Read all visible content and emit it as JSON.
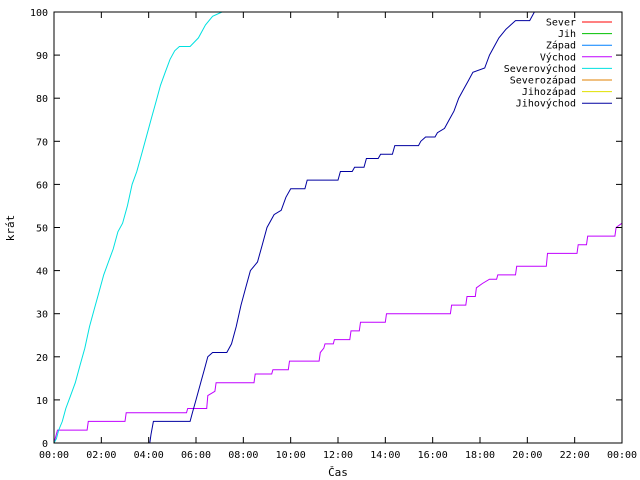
{
  "chart_data": {
    "type": "line",
    "xlabel": "Čas",
    "ylabel": "krát",
    "xlim": [
      0,
      24
    ],
    "ylim": [
      0,
      100
    ],
    "x_ticks": [
      {
        "value": 0,
        "label": "00:00"
      },
      {
        "value": 2,
        "label": "02:00"
      },
      {
        "value": 4,
        "label": "04:00"
      },
      {
        "value": 6,
        "label": "06:00"
      },
      {
        "value": 8,
        "label": "08:00"
      },
      {
        "value": 10,
        "label": "10:00"
      },
      {
        "value": 12,
        "label": "12:00"
      },
      {
        "value": 14,
        "label": "14:00"
      },
      {
        "value": 16,
        "label": "16:00"
      },
      {
        "value": 18,
        "label": "18:00"
      },
      {
        "value": 20,
        "label": "20:00"
      },
      {
        "value": 22,
        "label": "22:00"
      },
      {
        "value": 24,
        "label": "00:00"
      }
    ],
    "y_ticks": [
      0,
      10,
      20,
      30,
      40,
      50,
      60,
      70,
      80,
      90,
      100
    ],
    "grid": false,
    "legend_position": "top-right",
    "series": [
      {
        "name": "Sever",
        "color": "#ff0000",
        "points": []
      },
      {
        "name": "Jih",
        "color": "#00c000",
        "points": []
      },
      {
        "name": "Západ",
        "color": "#0080ff",
        "points": []
      },
      {
        "name": "Východ",
        "color": "#c000ff",
        "points": [
          [
            0.0,
            0
          ],
          [
            0.15,
            3
          ],
          [
            1.4,
            3
          ],
          [
            1.45,
            5
          ],
          [
            3.0,
            5
          ],
          [
            3.05,
            7
          ],
          [
            5.6,
            7
          ],
          [
            5.65,
            8
          ],
          [
            6.45,
            8
          ],
          [
            6.5,
            11
          ],
          [
            6.8,
            12
          ],
          [
            6.85,
            14
          ],
          [
            8.45,
            14
          ],
          [
            8.5,
            16
          ],
          [
            9.2,
            16
          ],
          [
            9.25,
            17
          ],
          [
            9.9,
            17
          ],
          [
            9.95,
            19
          ],
          [
            11.2,
            19
          ],
          [
            11.25,
            21
          ],
          [
            11.4,
            22
          ],
          [
            11.45,
            23
          ],
          [
            11.8,
            23
          ],
          [
            11.85,
            24
          ],
          [
            12.5,
            24
          ],
          [
            12.55,
            26
          ],
          [
            12.9,
            26
          ],
          [
            12.95,
            28
          ],
          [
            14.0,
            28
          ],
          [
            14.05,
            30
          ],
          [
            16.75,
            30
          ],
          [
            16.8,
            32
          ],
          [
            17.4,
            32
          ],
          [
            17.45,
            34
          ],
          [
            17.8,
            34
          ],
          [
            17.85,
            36
          ],
          [
            18.1,
            37
          ],
          [
            18.4,
            38
          ],
          [
            18.7,
            38
          ],
          [
            18.75,
            39
          ],
          [
            19.5,
            39
          ],
          [
            19.55,
            41
          ],
          [
            20.8,
            41
          ],
          [
            20.85,
            44
          ],
          [
            22.1,
            44
          ],
          [
            22.15,
            46
          ],
          [
            22.5,
            46
          ],
          [
            22.55,
            48
          ],
          [
            23.7,
            48
          ],
          [
            23.75,
            50
          ],
          [
            24.0,
            51
          ]
        ]
      },
      {
        "name": "Severovýchod",
        "color": "#00e0e0",
        "points": [
          [
            0.0,
            0
          ],
          [
            0.1,
            1
          ],
          [
            0.2,
            3
          ],
          [
            0.35,
            5
          ],
          [
            0.5,
            8
          ],
          [
            0.7,
            11
          ],
          [
            0.9,
            14
          ],
          [
            1.1,
            18
          ],
          [
            1.3,
            22
          ],
          [
            1.5,
            27
          ],
          [
            1.7,
            31
          ],
          [
            1.9,
            35
          ],
          [
            2.1,
            39
          ],
          [
            2.3,
            42
          ],
          [
            2.5,
            45
          ],
          [
            2.7,
            49
          ],
          [
            2.9,
            51
          ],
          [
            3.1,
            55
          ],
          [
            3.3,
            60
          ],
          [
            3.5,
            63
          ],
          [
            3.7,
            67
          ],
          [
            3.9,
            71
          ],
          [
            4.1,
            75
          ],
          [
            4.3,
            79
          ],
          [
            4.5,
            83
          ],
          [
            4.7,
            86
          ],
          [
            4.9,
            89
          ],
          [
            5.1,
            91
          ],
          [
            5.3,
            92
          ],
          [
            5.75,
            92
          ],
          [
            6.1,
            94
          ],
          [
            6.4,
            97
          ],
          [
            6.7,
            99
          ],
          [
            7.1,
            100
          ],
          [
            8.3,
            100
          ]
        ]
      },
      {
        "name": "Severozápad",
        "color": "#e08000",
        "points": []
      },
      {
        "name": "Jihozápad",
        "color": "#e0e000",
        "points": []
      },
      {
        "name": "Jihovýchod",
        "color": "#0000a0",
        "points": [
          [
            4.05,
            0
          ],
          [
            4.1,
            2
          ],
          [
            4.2,
            5
          ],
          [
            5.75,
            5
          ],
          [
            5.85,
            7
          ],
          [
            6.0,
            10
          ],
          [
            6.2,
            14
          ],
          [
            6.35,
            17
          ],
          [
            6.5,
            20
          ],
          [
            6.7,
            21
          ],
          [
            7.3,
            21
          ],
          [
            7.5,
            23
          ],
          [
            7.7,
            27
          ],
          [
            7.9,
            32
          ],
          [
            8.1,
            36
          ],
          [
            8.3,
            40
          ],
          [
            8.6,
            42
          ],
          [
            8.8,
            46
          ],
          [
            9.0,
            50
          ],
          [
            9.3,
            53
          ],
          [
            9.6,
            54
          ],
          [
            9.8,
            57
          ],
          [
            10.0,
            59
          ],
          [
            10.6,
            59
          ],
          [
            10.7,
            61
          ],
          [
            12.0,
            61
          ],
          [
            12.1,
            63
          ],
          [
            12.6,
            63
          ],
          [
            12.7,
            64
          ],
          [
            13.1,
            64
          ],
          [
            13.2,
            66
          ],
          [
            13.7,
            66
          ],
          [
            13.8,
            67
          ],
          [
            14.3,
            67
          ],
          [
            14.4,
            69
          ],
          [
            15.4,
            69
          ],
          [
            15.5,
            70
          ],
          [
            15.7,
            71
          ],
          [
            16.1,
            71
          ],
          [
            16.2,
            72
          ],
          [
            16.5,
            73
          ],
          [
            16.7,
            75
          ],
          [
            16.9,
            77
          ],
          [
            17.1,
            80
          ],
          [
            17.3,
            82
          ],
          [
            17.5,
            84
          ],
          [
            17.7,
            86
          ],
          [
            18.2,
            87
          ],
          [
            18.4,
            90
          ],
          [
            18.6,
            92
          ],
          [
            18.8,
            94
          ],
          [
            19.1,
            96
          ],
          [
            19.3,
            97
          ],
          [
            19.5,
            98
          ],
          [
            20.1,
            98
          ],
          [
            20.3,
            100
          ]
        ]
      }
    ]
  }
}
